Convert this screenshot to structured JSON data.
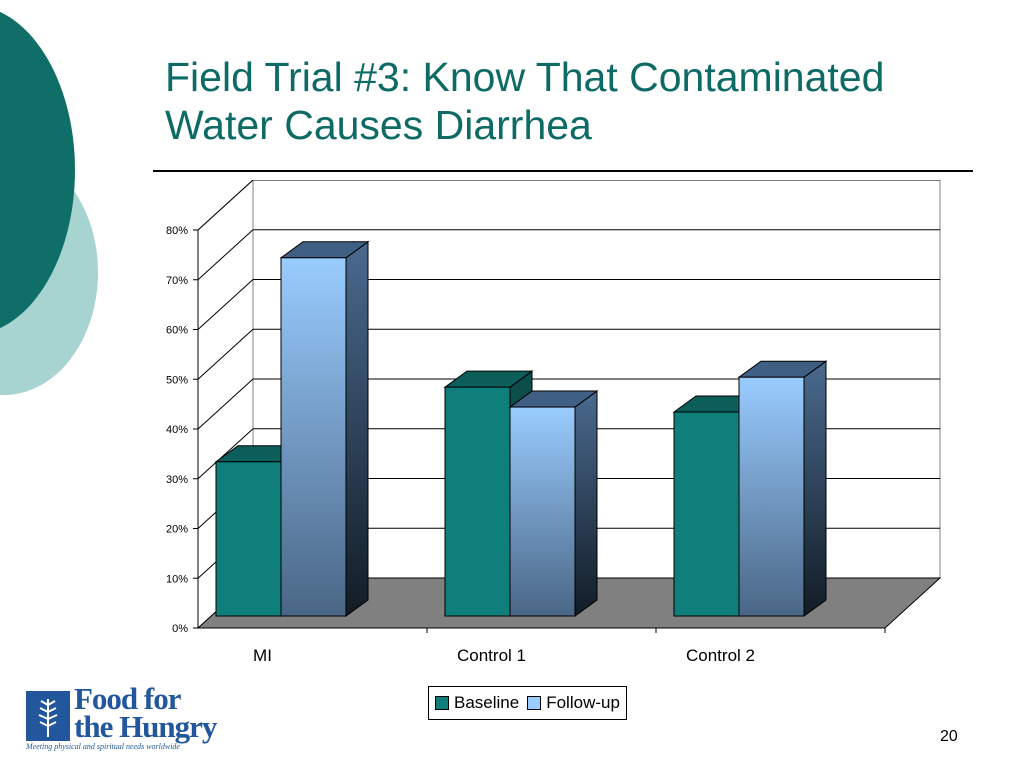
{
  "slide": {
    "title_line1": "Field Trial #3: Know That Contaminated",
    "title_line2": "Water Causes Diarrhea",
    "page_number": "20"
  },
  "logo": {
    "line1": "Food for",
    "line2": "the Hungry",
    "tagline": "Meeting physical and spiritual needs worldwide"
  },
  "colors": {
    "title": "#0e6a65",
    "baseline": "#0f7f7b",
    "followup": "#99ccff",
    "logo": "#22579e"
  },
  "chart_data": {
    "type": "bar",
    "categories": [
      "MI",
      "Control 1",
      "Control 2"
    ],
    "series": [
      {
        "name": "Baseline",
        "values": [
          31,
          46,
          41
        ]
      },
      {
        "name": "Follow-up",
        "values": [
          72,
          42,
          48
        ]
      }
    ],
    "ylim": [
      0,
      80
    ],
    "yticks": [
      "0%",
      "10%",
      "20%",
      "30%",
      "40%",
      "50%",
      "60%",
      "70%",
      "80%"
    ],
    "grid": true,
    "legend": "bottom-center",
    "style": "3d-clustered"
  }
}
